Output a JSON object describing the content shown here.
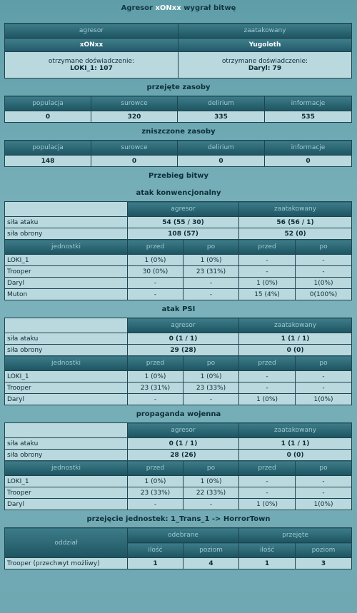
{
  "header": {
    "title_parts": [
      "Agresor",
      "xONxx",
      "wygrał bitwę"
    ]
  },
  "sides": {
    "headers": [
      "agresor",
      "zaatakowany"
    ],
    "names": [
      "xONxx",
      "Yugoloth"
    ],
    "experience": [
      {
        "label": "otrzymane doświadczenie:",
        "value": "LOKI_1: 107"
      },
      {
        "label": "otrzymane doświadczenie:",
        "value": "Daryl: 79"
      }
    ]
  },
  "captured": {
    "title": "przejęte zasoby",
    "headers": [
      "populacja",
      "surowce",
      "delirium",
      "informacje"
    ],
    "values": [
      0,
      320,
      335,
      535
    ]
  },
  "destroyed": {
    "title": "zniszczone zasoby",
    "headers": [
      "populacja",
      "surowce",
      "delirium",
      "informacje"
    ],
    "values": [
      148,
      0,
      0,
      0
    ]
  },
  "battle_title": "Przebieg bitwy",
  "rounds": [
    {
      "title": "atak konwencjonalny",
      "sides": [
        "agresor",
        "zaatakowany"
      ],
      "stats": [
        {
          "label": "siła ataku",
          "values": [
            "54 (55 / 30)",
            "56 (56 / 1)"
          ]
        },
        {
          "label": "siła obrony",
          "values": [
            "108 (57)",
            "52 (0)"
          ]
        }
      ],
      "unit_headers": [
        "jednostki",
        "przed",
        "po",
        "przed",
        "po"
      ],
      "units": [
        [
          "LOKI_1",
          "1 (0%)",
          "1 (0%)",
          "-",
          "-"
        ],
        [
          "Trooper",
          "30 (0%)",
          "23 (31%)",
          "-",
          "-"
        ],
        [
          "Daryl",
          "-",
          "-",
          "1 (0%)",
          "1(0%)"
        ],
        [
          "Muton",
          "-",
          "-",
          "15 (4%)",
          "0(100%)"
        ]
      ]
    },
    {
      "title": "atak PSI",
      "sides": [
        "agresor",
        "zaatakowany"
      ],
      "stats": [
        {
          "label": "siła ataku",
          "values": [
            "0 (1 / 1)",
            "1 (1 / 1)"
          ]
        },
        {
          "label": "siła obrony",
          "values": [
            "29 (28)",
            "0 (0)"
          ]
        }
      ],
      "unit_headers": [
        "jednostki",
        "przed",
        "po",
        "przed",
        "po"
      ],
      "units": [
        [
          "LOKI_1",
          "1 (0%)",
          "1 (0%)",
          "-",
          "-"
        ],
        [
          "Trooper",
          "23 (31%)",
          "23 (33%)",
          "-",
          "-"
        ],
        [
          "Daryl",
          "-",
          "-",
          "1 (0%)",
          "1(0%)"
        ]
      ]
    },
    {
      "title": "propaganda wojenna",
      "sides": [
        "agresor",
        "zaatakowany"
      ],
      "stats": [
        {
          "label": "siła ataku",
          "values": [
            "0 (1 / 1)",
            "1 (1 / 1)"
          ]
        },
        {
          "label": "siła obrony",
          "values": [
            "28 (26)",
            "0 (0)"
          ]
        }
      ],
      "unit_headers": [
        "jednostki",
        "przed",
        "po",
        "przed",
        "po"
      ],
      "units": [
        [
          "LOKI_1",
          "1 (0%)",
          "1 (0%)",
          "-",
          "-"
        ],
        [
          "Trooper",
          "23 (33%)",
          "22 (33%)",
          "-",
          "-"
        ],
        [
          "Daryl",
          "-",
          "-",
          "1 (0%)",
          "1(0%)"
        ]
      ]
    }
  ],
  "transfer": {
    "title": "przejęcie jednostek: 1_Trans_1 -> HorrorTown",
    "group_header": "oddział",
    "sides": [
      "odebrane",
      "przejęte"
    ],
    "sub_headers": [
      "ilość",
      "poziom",
      "ilość",
      "poziom"
    ],
    "rows": [
      [
        "Trooper (przechwyt możliwy)",
        1,
        4,
        1,
        3
      ]
    ]
  }
}
